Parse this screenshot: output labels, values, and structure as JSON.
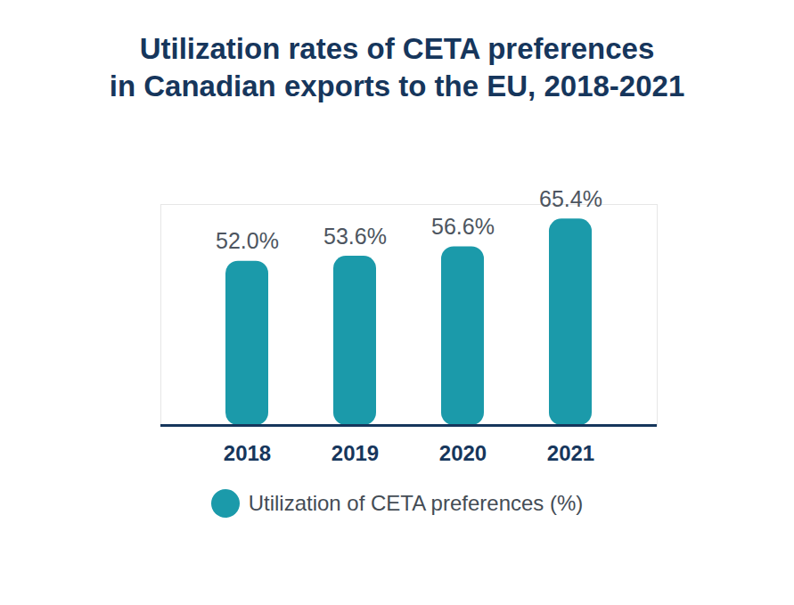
{
  "chart_data": {
    "type": "bar",
    "title": "Utilization rates of CETA preferences\nin Canadian exports to the EU, 2018-2021",
    "categories": [
      "2018",
      "2019",
      "2020",
      "2021"
    ],
    "series": [
      {
        "name": "Utilization of CETA preferences (%)",
        "color": "#1b9aaa",
        "values": [
          52.0,
          53.6,
          56.6,
          65.4
        ],
        "value_labels": [
          "52.0%",
          "53.6%",
          "56.6%",
          "65.4%"
        ]
      }
    ],
    "ylim": [
      0,
      70
    ],
    "data_labels": true,
    "tick_labels": "x",
    "legend": "bottom"
  }
}
